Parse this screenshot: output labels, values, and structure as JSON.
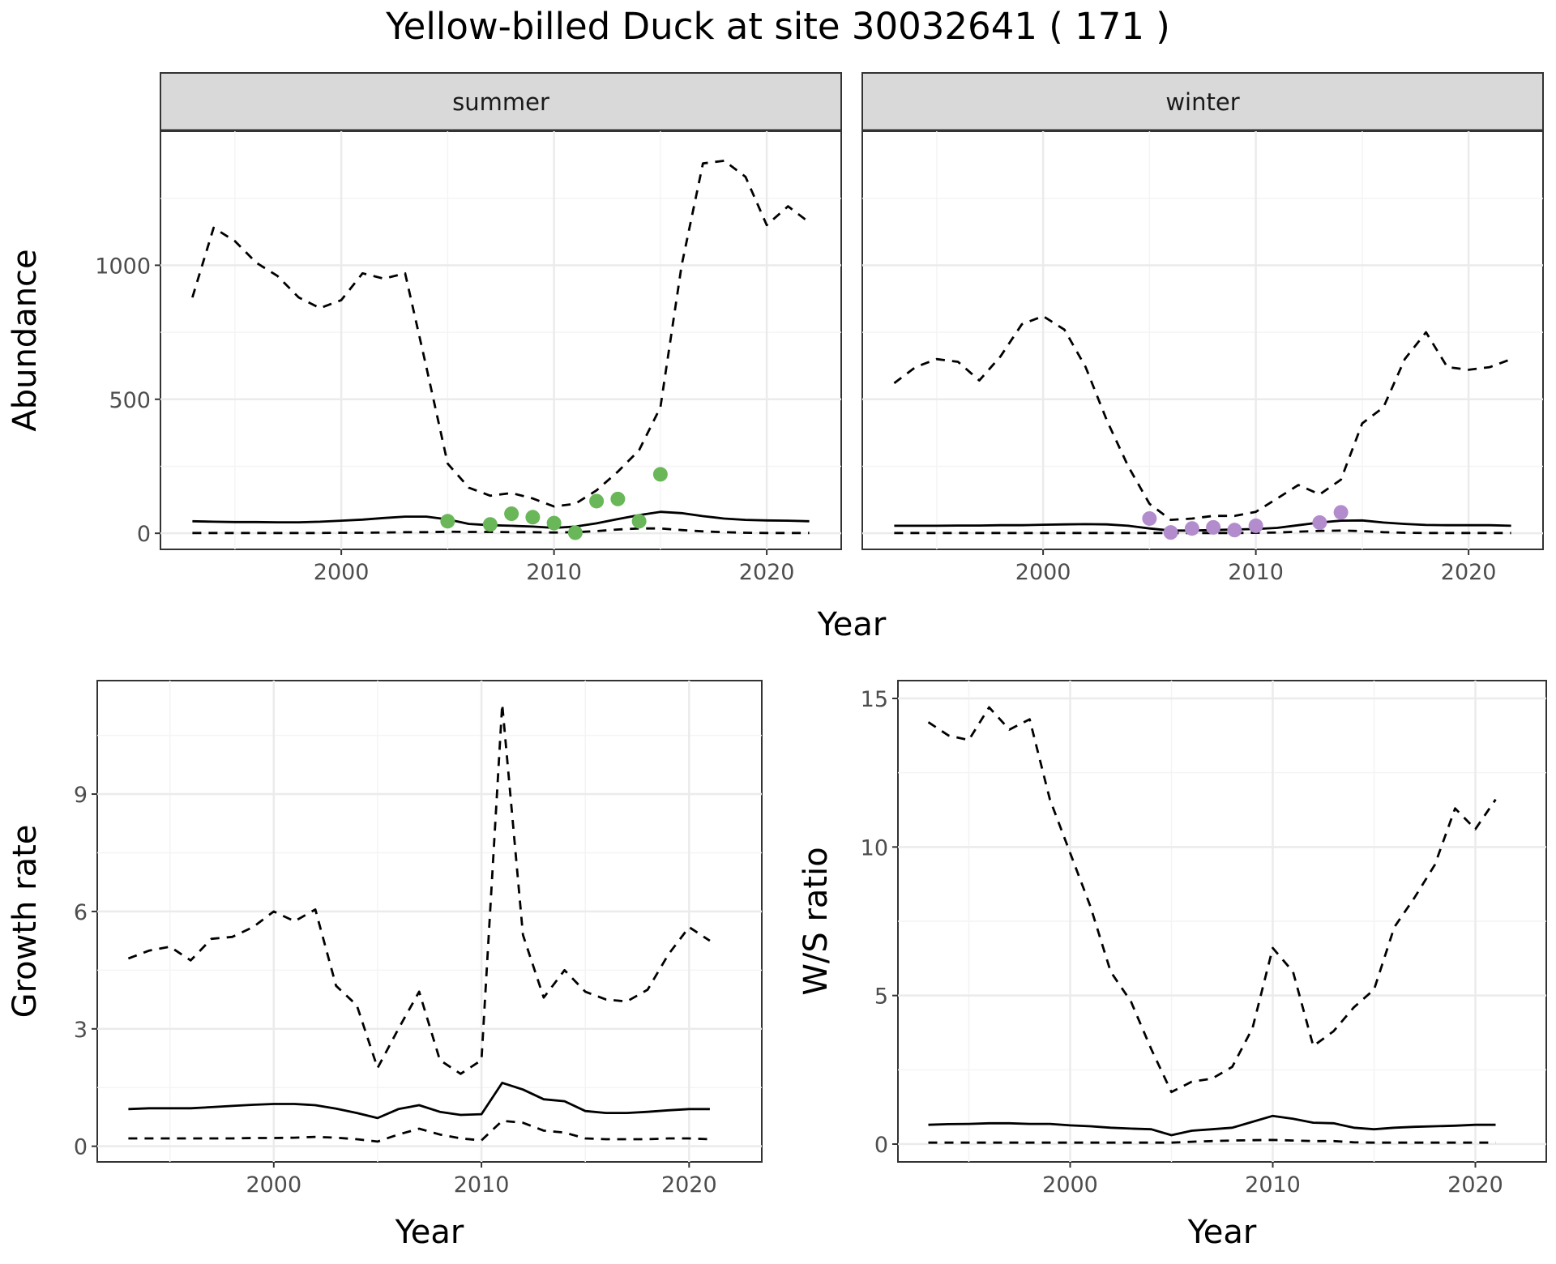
{
  "title": "Yellow-billed Duck at site 30032641 ( 171 )",
  "colors": {
    "summer_points": "#6ab759",
    "winter_points": "#b28ccc",
    "line": "#000000",
    "grid_major": "#ebebeb",
    "grid_minor": "#f4f4f4",
    "strip_fill": "#d9d9d9"
  },
  "chart_data": [
    {
      "type": "line",
      "panel": "summer",
      "strip_label": "summer",
      "xlabel": "Year",
      "ylabel": "Abundance",
      "xlim": [
        1991.5,
        2023.5
      ],
      "ylim": [
        -60,
        1500
      ],
      "x_ticks": [
        2000,
        2010,
        2020
      ],
      "y_ticks": [
        0,
        500,
        1000
      ],
      "grid": true,
      "series": [
        {
          "style": "solid",
          "x": [
            1993,
            1994,
            1995,
            1996,
            1997,
            1998,
            1999,
            2000,
            2001,
            2002,
            2003,
            2004,
            2005,
            2006,
            2007,
            2008,
            2009,
            2010,
            2011,
            2012,
            2013,
            2014,
            2015,
            2016,
            2017,
            2018,
            2019,
            2020,
            2021,
            2022
          ],
          "values": [
            45,
            43,
            42,
            42,
            41,
            41,
            43,
            47,
            51,
            57,
            62,
            62,
            52,
            35,
            30,
            28,
            25,
            20,
            25,
            37,
            53,
            68,
            80,
            75,
            64,
            55,
            50,
            48,
            47,
            45
          ]
        },
        {
          "style": "dashed",
          "x": [
            1993,
            1994,
            1995,
            1996,
            1997,
            1998,
            1999,
            2000,
            2001,
            2002,
            2003,
            2004,
            2005,
            2006,
            2007,
            2008,
            2009,
            2010,
            2011,
            2012,
            2013,
            2014,
            2015,
            2016,
            2017,
            2018,
            2019,
            2020,
            2021,
            2022
          ],
          "values": [
            880,
            1140,
            1090,
            1010,
            960,
            880,
            840,
            870,
            970,
            950,
            970,
            620,
            260,
            170,
            140,
            150,
            130,
            100,
            110,
            160,
            230,
            310,
            470,
            1000,
            1380,
            1390,
            1330,
            1150,
            1220,
            1160
          ]
        },
        {
          "style": "dashed",
          "x": [
            1993,
            1994,
            1995,
            1996,
            1997,
            1998,
            1999,
            2000,
            2001,
            2002,
            2003,
            2004,
            2005,
            2006,
            2007,
            2008,
            2009,
            2010,
            2011,
            2012,
            2013,
            2014,
            2015,
            2016,
            2017,
            2018,
            2019,
            2020,
            2021,
            2022
          ],
          "values": [
            1,
            1,
            1,
            1,
            1,
            1,
            1,
            2,
            2,
            3,
            4,
            4,
            6,
            5,
            5,
            4,
            4,
            3,
            4,
            8,
            14,
            18,
            18,
            12,
            7,
            4,
            2,
            1,
            1,
            1
          ]
        }
      ],
      "points": {
        "x": [
          2005,
          2007,
          2008,
          2009,
          2010,
          2011,
          2012,
          2013,
          2014,
          2015
        ],
        "values": [
          45,
          33,
          73,
          60,
          38,
          2,
          120,
          128,
          45,
          220
        ]
      }
    },
    {
      "type": "line",
      "panel": "winter",
      "strip_label": "winter",
      "xlabel": "Year",
      "ylabel": "Abundance",
      "xlim": [
        1991.5,
        2023.5
      ],
      "ylim": [
        -60,
        1500
      ],
      "x_ticks": [
        2000,
        2010,
        2020
      ],
      "y_ticks": [
        0,
        500,
        1000
      ],
      "grid": true,
      "series": [
        {
          "style": "solid",
          "x": [
            1993,
            1994,
            1995,
            1996,
            1997,
            1998,
            1999,
            2000,
            2001,
            2002,
            2003,
            2004,
            2005,
            2006,
            2007,
            2008,
            2009,
            2010,
            2011,
            2012,
            2013,
            2014,
            2015,
            2016,
            2017,
            2018,
            2019,
            2020,
            2021,
            2022
          ],
          "values": [
            28,
            28,
            28,
            29,
            29,
            30,
            30,
            32,
            33,
            34,
            33,
            28,
            18,
            10,
            10,
            12,
            14,
            16,
            20,
            30,
            40,
            47,
            48,
            40,
            35,
            31,
            30,
            30,
            30,
            28
          ]
        },
        {
          "style": "dashed",
          "x": [
            1993,
            1994,
            1995,
            1996,
            1997,
            1998,
            1999,
            2000,
            2001,
            2002,
            2003,
            2004,
            2005,
            2006,
            2007,
            2008,
            2009,
            2010,
            2011,
            2012,
            2013,
            2014,
            2015,
            2016,
            2017,
            2018,
            2019,
            2020,
            2021,
            2022
          ],
          "values": [
            560,
            620,
            650,
            640,
            570,
            660,
            780,
            810,
            760,
            620,
            420,
            250,
            110,
            50,
            55,
            65,
            65,
            80,
            130,
            180,
            145,
            200,
            410,
            470,
            650,
            750,
            620,
            610,
            620,
            650
          ]
        },
        {
          "style": "dashed",
          "x": [
            1993,
            1994,
            1995,
            1996,
            1997,
            1998,
            1999,
            2000,
            2001,
            2002,
            2003,
            2004,
            2005,
            2006,
            2007,
            2008,
            2009,
            2010,
            2011,
            2012,
            2013,
            2014,
            2015,
            2016,
            2017,
            2018,
            2019,
            2020,
            2021,
            2022
          ],
          "values": [
            1,
            1,
            1,
            1,
            1,
            1,
            1,
            1,
            1,
            1,
            1,
            1,
            1,
            1,
            1,
            1,
            1,
            2,
            3,
            6,
            9,
            10,
            8,
            4,
            2,
            1,
            1,
            1,
            1,
            1
          ]
        }
      ],
      "points": {
        "x": [
          2005,
          2006,
          2007,
          2008,
          2009,
          2010,
          2013,
          2014
        ],
        "values": [
          55,
          3,
          18,
          22,
          12,
          28,
          40,
          78
        ]
      }
    },
    {
      "type": "line",
      "panel": "growth",
      "xlabel": "Year",
      "ylabel": "Growth rate",
      "xlim": [
        1991.5,
        2023.5
      ],
      "ylim": [
        -0.4,
        11.9
      ],
      "x_ticks": [
        2000,
        2010,
        2020
      ],
      "y_ticks": [
        0,
        3,
        6,
        9
      ],
      "grid": true,
      "series": [
        {
          "style": "solid",
          "x": [
            1993,
            1994,
            1995,
            1996,
            1997,
            1998,
            1999,
            2000,
            2001,
            2002,
            2003,
            2004,
            2005,
            2006,
            2007,
            2008,
            2009,
            2010,
            2011,
            2012,
            2013,
            2014,
            2015,
            2016,
            2017,
            2018,
            2019,
            2020,
            2021
          ],
          "values": [
            0.95,
            0.97,
            0.97,
            0.97,
            1.0,
            1.03,
            1.06,
            1.08,
            1.08,
            1.05,
            0.96,
            0.85,
            0.72,
            0.95,
            1.05,
            0.88,
            0.8,
            0.82,
            1.62,
            1.45,
            1.2,
            1.15,
            0.9,
            0.85,
            0.85,
            0.88,
            0.92,
            0.95,
            0.95
          ]
        },
        {
          "style": "dashed",
          "x": [
            1993,
            1994,
            1995,
            1996,
            1997,
            1998,
            1999,
            2000,
            2001,
            2002,
            2003,
            2004,
            2005,
            2006,
            2007,
            2008,
            2009,
            2010,
            2011,
            2012,
            2013,
            2014,
            2015,
            2016,
            2017,
            2018,
            2019,
            2020,
            2021
          ],
          "values": [
            4.8,
            5.0,
            5.1,
            4.75,
            5.3,
            5.35,
            5.6,
            6.0,
            5.75,
            6.05,
            4.1,
            3.6,
            2.0,
            3.0,
            3.95,
            2.2,
            1.85,
            2.2,
            11.3,
            5.4,
            3.8,
            4.5,
            3.95,
            3.75,
            3.7,
            4.0,
            4.9,
            5.6,
            5.25
          ]
        },
        {
          "style": "dashed",
          "x": [
            1993,
            1994,
            1995,
            1996,
            1997,
            1998,
            1999,
            2000,
            2001,
            2002,
            2003,
            2004,
            2005,
            2006,
            2007,
            2008,
            2009,
            2010,
            2011,
            2012,
            2013,
            2014,
            2015,
            2016,
            2017,
            2018,
            2019,
            2020,
            2021
          ],
          "values": [
            0.2,
            0.2,
            0.2,
            0.2,
            0.2,
            0.2,
            0.21,
            0.21,
            0.22,
            0.24,
            0.22,
            0.18,
            0.12,
            0.3,
            0.45,
            0.3,
            0.2,
            0.15,
            0.65,
            0.6,
            0.4,
            0.35,
            0.2,
            0.18,
            0.18,
            0.18,
            0.2,
            0.2,
            0.18
          ]
        }
      ]
    },
    {
      "type": "line",
      "panel": "ratio",
      "xlabel": "Year",
      "ylabel": "W/S ratio",
      "xlim": [
        1991.5,
        2023.5
      ],
      "ylim": [
        -0.6,
        15.6
      ],
      "x_ticks": [
        2000,
        2010,
        2020
      ],
      "y_ticks": [
        0,
        5,
        10,
        15
      ],
      "grid": true,
      "series": [
        {
          "style": "solid",
          "x": [
            1993,
            1994,
            1995,
            1996,
            1997,
            1998,
            1999,
            2000,
            2001,
            2002,
            2003,
            2004,
            2005,
            2006,
            2007,
            2008,
            2009,
            2010,
            2011,
            2012,
            2013,
            2014,
            2015,
            2016,
            2017,
            2018,
            2019,
            2020,
            2021
          ],
          "values": [
            0.65,
            0.67,
            0.68,
            0.7,
            0.7,
            0.68,
            0.68,
            0.63,
            0.6,
            0.55,
            0.52,
            0.5,
            0.3,
            0.45,
            0.5,
            0.55,
            0.75,
            0.95,
            0.85,
            0.72,
            0.7,
            0.55,
            0.5,
            0.55,
            0.58,
            0.6,
            0.62,
            0.65,
            0.65
          ]
        },
        {
          "style": "dashed",
          "x": [
            1993,
            1994,
            1995,
            1996,
            1997,
            1998,
            1999,
            2000,
            2001,
            2002,
            2003,
            2004,
            2005,
            2006,
            2007,
            2008,
            2009,
            2010,
            2011,
            2012,
            2013,
            2014,
            2015,
            2016,
            2017,
            2018,
            2019,
            2020,
            2021
          ],
          "values": [
            14.2,
            13.75,
            13.6,
            14.7,
            13.95,
            14.3,
            11.6,
            9.8,
            8.0,
            5.8,
            4.8,
            3.2,
            1.75,
            2.1,
            2.2,
            2.6,
            3.9,
            6.6,
            5.8,
            3.3,
            3.8,
            4.6,
            5.2,
            7.3,
            8.3,
            9.4,
            11.3,
            10.6,
            11.6
          ]
        },
        {
          "style": "dashed",
          "x": [
            1993,
            1994,
            1995,
            1996,
            1997,
            1998,
            1999,
            2000,
            2001,
            2002,
            2003,
            2004,
            2005,
            2006,
            2007,
            2008,
            2009,
            2010,
            2011,
            2012,
            2013,
            2014,
            2015,
            2016,
            2017,
            2018,
            2019,
            2020,
            2021
          ],
          "values": [
            0.05,
            0.05,
            0.05,
            0.05,
            0.05,
            0.05,
            0.05,
            0.05,
            0.05,
            0.05,
            0.05,
            0.05,
            0.05,
            0.08,
            0.1,
            0.12,
            0.13,
            0.14,
            0.12,
            0.1,
            0.1,
            0.06,
            0.05,
            0.05,
            0.05,
            0.05,
            0.05,
            0.05,
            0.05
          ]
        }
      ]
    }
  ]
}
